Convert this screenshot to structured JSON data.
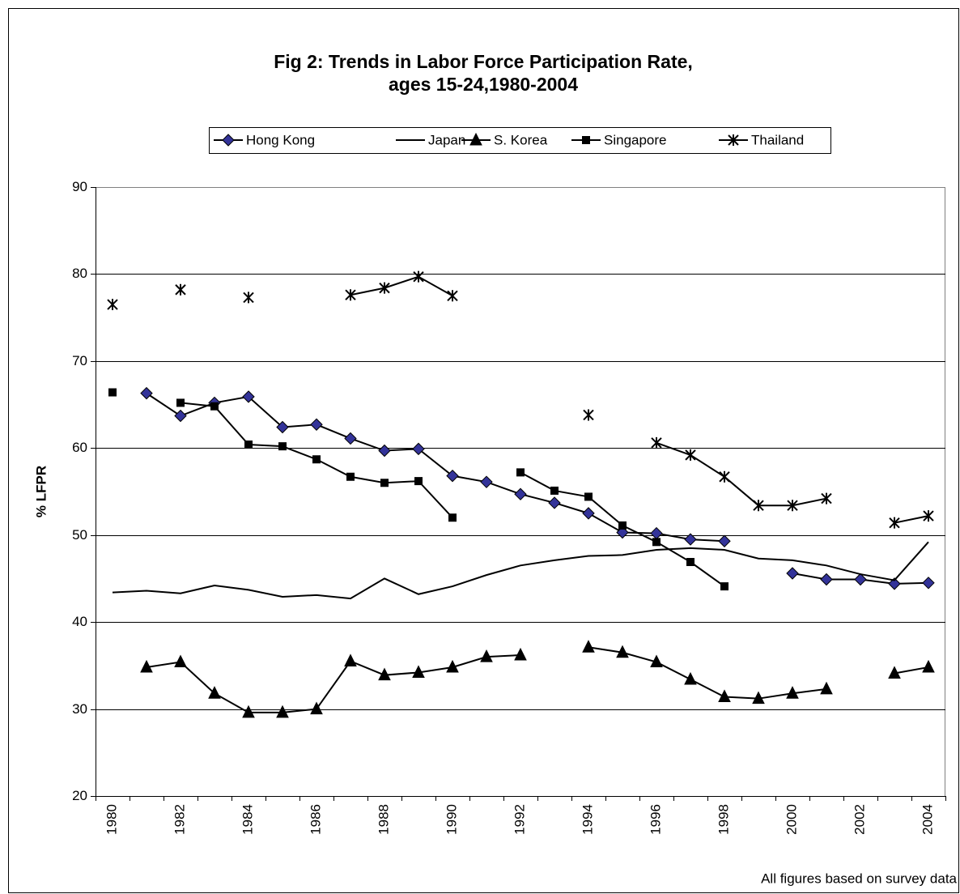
{
  "chart_data": {
    "type": "line",
    "title": [
      "Fig 2: Trends in Labor Force Participation Rate,",
      "ages 15-24,1980-2004"
    ],
    "y_label": "% LFPR",
    "note": "All figures based on survey data",
    "categories": [
      "1980",
      null,
      "1982",
      null,
      "1984",
      null,
      "1986",
      null,
      "1988",
      null,
      "1990",
      null,
      "1992",
      null,
      "1994",
      null,
      "1996",
      null,
      "1998",
      null,
      "2000",
      null,
      "2002",
      null,
      "2004"
    ],
    "series": [
      {
        "name": "Hong Kong",
        "color": "#333399",
        "marker": "diamond",
        "values": [
          null,
          66.3,
          63.7,
          65.2,
          65.9,
          62.4,
          62.7,
          61.1,
          59.7,
          59.9,
          56.8,
          56.1,
          54.7,
          53.7,
          52.5,
          50.3,
          50.2,
          49.5,
          49.3,
          null,
          45.6,
          44.9,
          44.9,
          44.4,
          44.5
        ]
      },
      {
        "name": "Japan",
        "color": "#000000",
        "marker": "none",
        "values": [
          43.4,
          43.6,
          43.3,
          44.2,
          43.7,
          42.9,
          43.1,
          42.7,
          45.0,
          43.2,
          44.1,
          45.4,
          46.5,
          47.1,
          47.6,
          47.7,
          48.3,
          48.5,
          48.3,
          47.3,
          47.1,
          46.5,
          45.5,
          44.8,
          49.2
        ]
      },
      {
        "name": "S. Korea",
        "color": "#000000",
        "marker": "triangle",
        "values": [
          null,
          34.8,
          35.4,
          31.8,
          29.6,
          29.6,
          30.0,
          35.5,
          33.9,
          34.2,
          34.8,
          36.0,
          36.2,
          null,
          37.1,
          36.5,
          35.4,
          33.4,
          31.4,
          31.2,
          31.8,
          32.3,
          null,
          34.1,
          34.8
        ]
      },
      {
        "name": "Singapore",
        "color": "#000000",
        "marker": "square",
        "values": [
          66.4,
          null,
          65.2,
          64.8,
          60.4,
          60.2,
          58.7,
          56.7,
          56.0,
          56.2,
          52.0,
          null,
          57.2,
          55.1,
          54.4,
          51.1,
          49.2,
          46.9,
          44.1,
          null,
          null,
          null,
          null,
          null,
          null
        ]
      },
      {
        "name": "Thailand",
        "color": "#000000",
        "marker": "asterisk",
        "values": [
          76.5,
          null,
          78.2,
          null,
          77.3,
          null,
          null,
          77.6,
          78.4,
          79.7,
          77.5,
          null,
          null,
          null,
          63.8,
          null,
          60.6,
          59.2,
          56.7,
          53.4,
          53.4,
          54.2,
          null,
          51.4,
          52.2
        ]
      }
    ],
    "ylim": [
      20,
      90
    ],
    "yticks": [
      20,
      30,
      40,
      50,
      60,
      70,
      80,
      90
    ],
    "grid": true,
    "legend": "top"
  }
}
